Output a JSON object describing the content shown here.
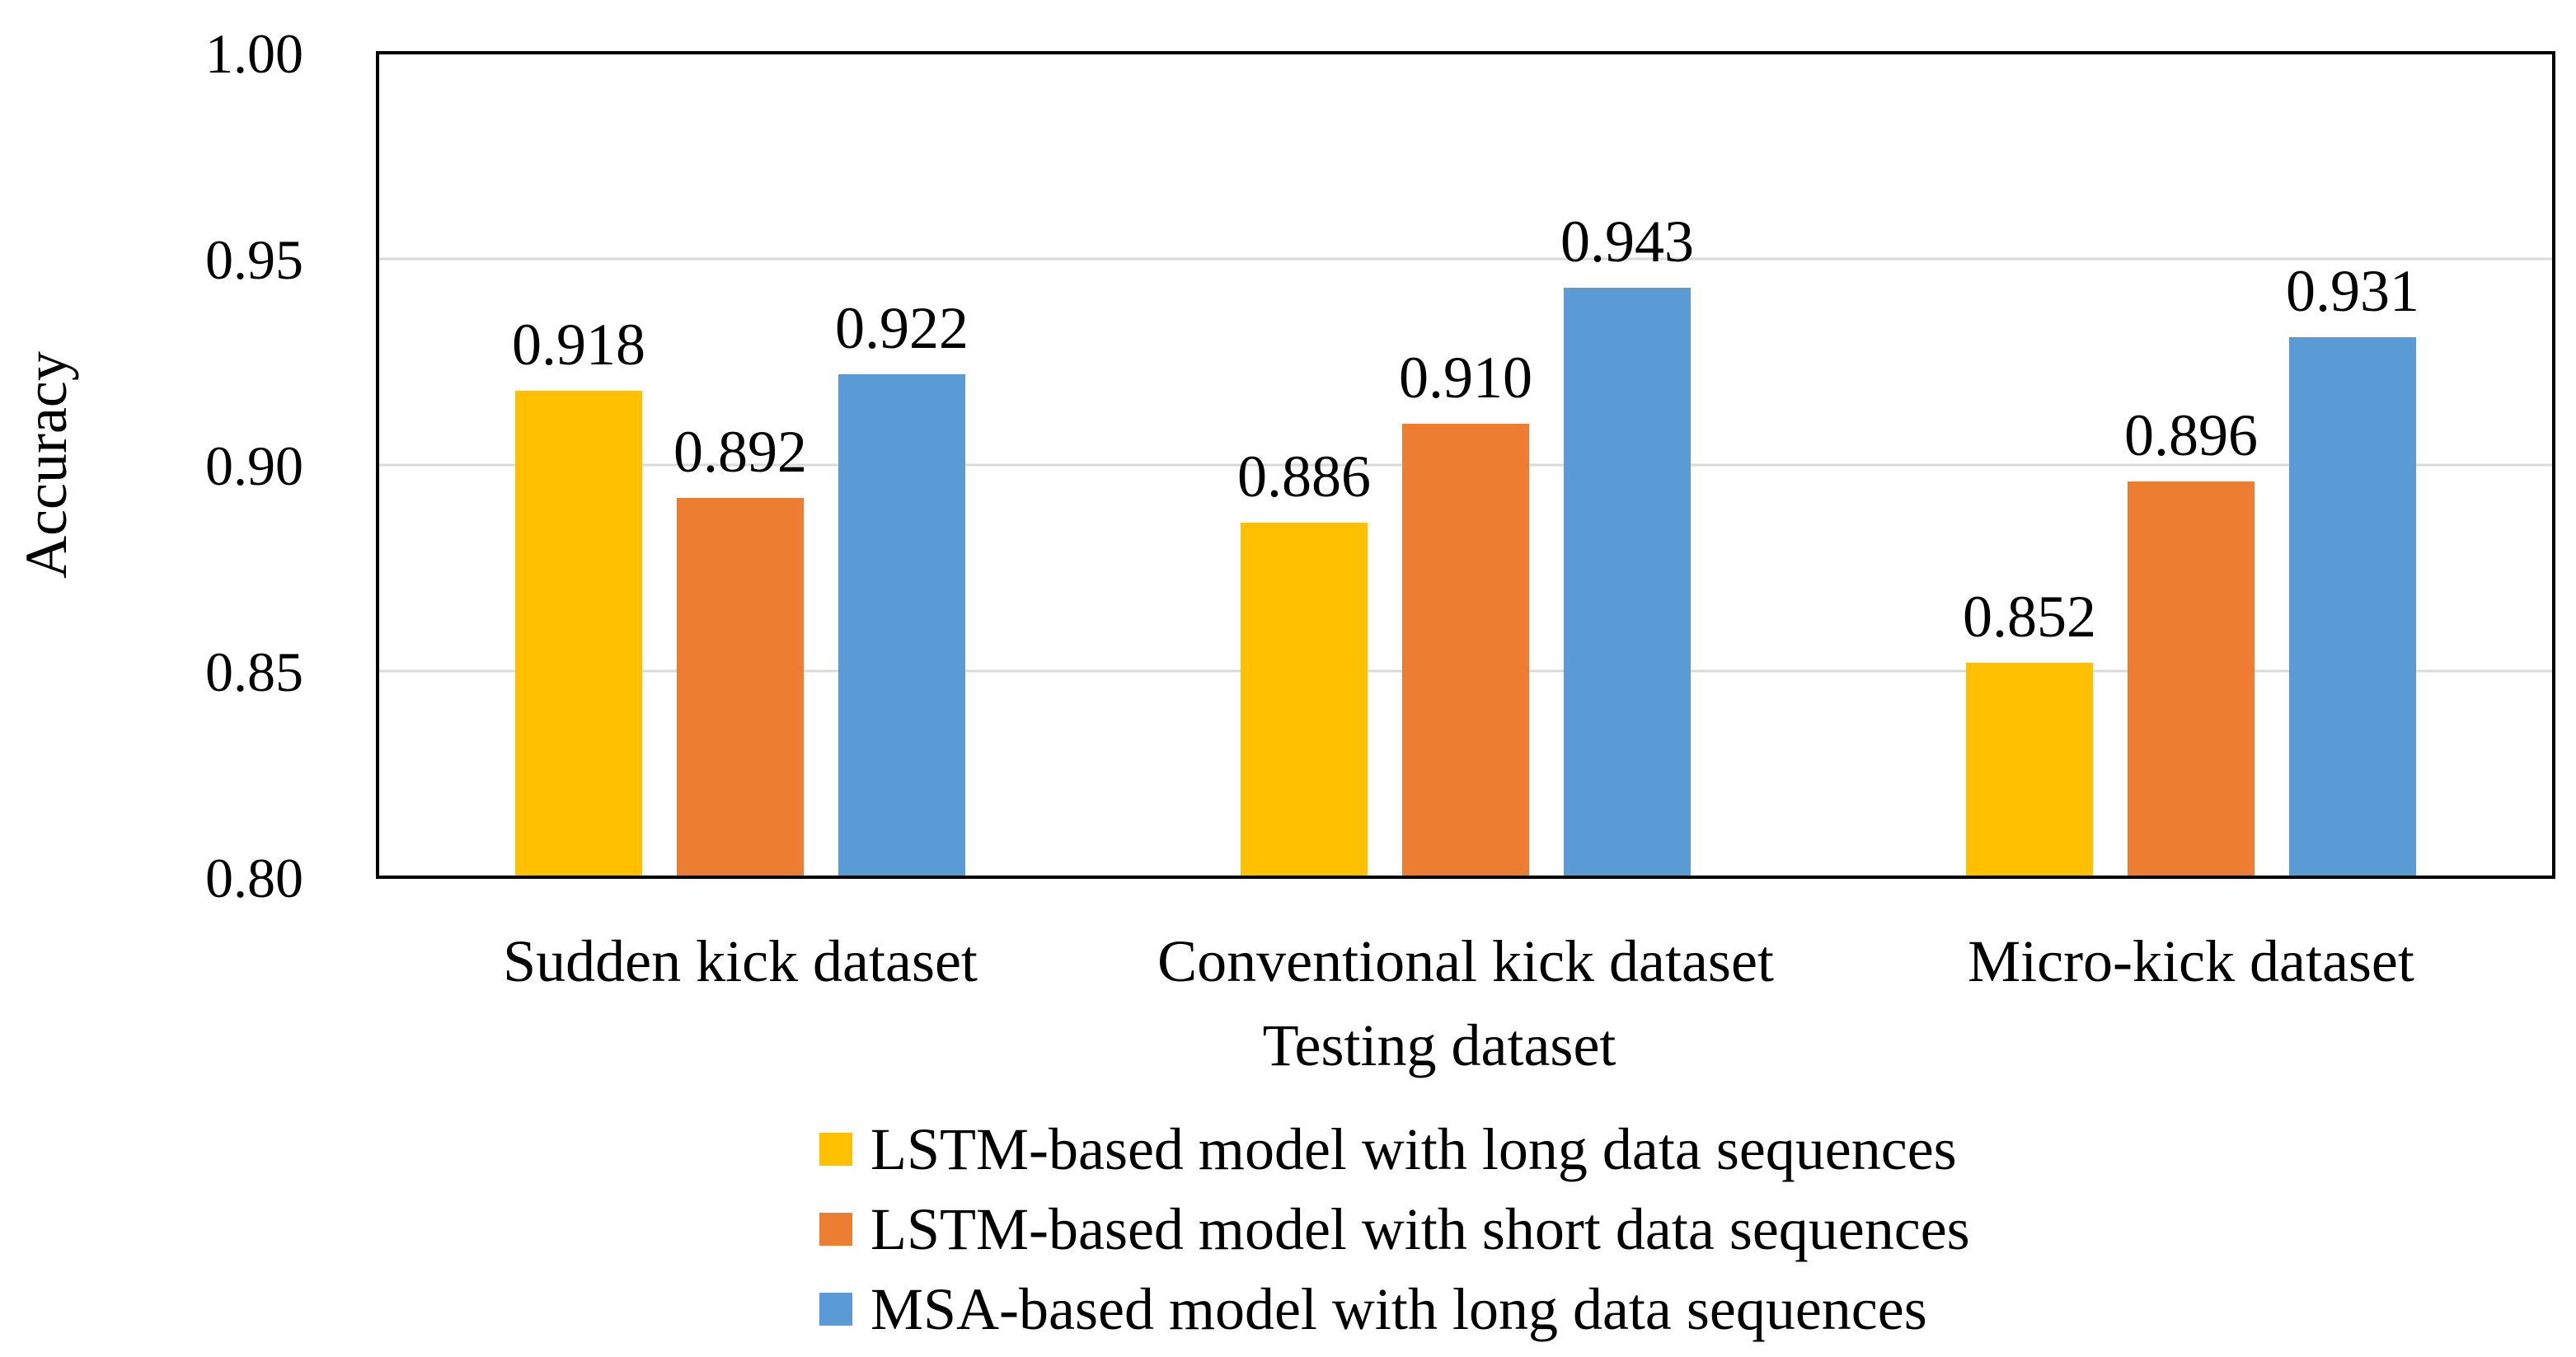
{
  "chart_data": {
    "type": "bar",
    "title": "",
    "xlabel": "Testing dataset",
    "ylabel": "Accuracy",
    "ylim": [
      0.8,
      1.0
    ],
    "yticks": [
      "0.80",
      "0.85",
      "0.90",
      "0.95",
      "1.00"
    ],
    "ytick_values": [
      0.8,
      0.85,
      0.9,
      0.95,
      1.0
    ],
    "grid": true,
    "legend_position": "bottom",
    "categories": [
      "Sudden kick dataset",
      "Conventional kick dataset",
      "Micro-kick dataset"
    ],
    "series": [
      {
        "name": "LSTM-based model with long data sequences",
        "color": "#FFC000",
        "values": [
          0.918,
          0.886,
          0.852
        ],
        "labels": [
          "0.918",
          "0.886",
          "0.852"
        ]
      },
      {
        "name": "LSTM-based model with short data sequences",
        "color": "#ED7D31",
        "values": [
          0.892,
          0.91,
          0.896
        ],
        "labels": [
          "0.892",
          "0.910",
          "0.896"
        ]
      },
      {
        "name": "MSA-based model with long data sequences",
        "color": "#5B9BD5",
        "values": [
          0.922,
          0.943,
          0.931
        ],
        "labels": [
          "0.922",
          "0.943",
          "0.931"
        ]
      }
    ]
  }
}
